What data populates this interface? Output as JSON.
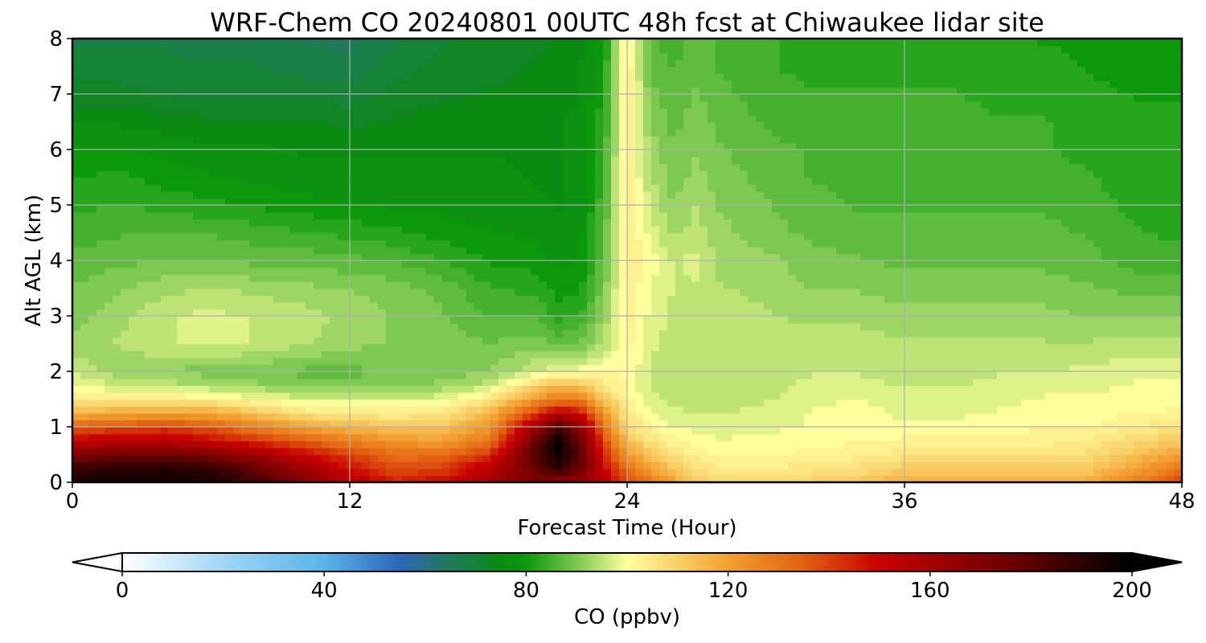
{
  "chart_data": {
    "type": "heatmap",
    "title": "WRF-Chem CO  20240801 00UTC 48h fcst at Chiwaukee lidar site",
    "xlabel": "Forecast Time (Hour)",
    "ylabel": "Alt AGL (km)",
    "xlim": [
      0,
      48
    ],
    "ylim": [
      0,
      8
    ],
    "xticks": [
      0,
      12,
      24,
      36,
      48
    ],
    "yticks": [
      0,
      1,
      2,
      3,
      4,
      5,
      6,
      7,
      8
    ],
    "grid": true,
    "colorbar": {
      "label": "CO  (ppbv)",
      "range": [
        0,
        200
      ],
      "ticks": [
        0,
        40,
        80,
        120,
        160,
        200
      ],
      "extend": "both",
      "colors": {
        "0": "#ffffff",
        "20": "#9fd6f5",
        "40": "#5ab4ea",
        "55": "#2e66b8",
        "65": "#1f7a5a",
        "75": "#0a8a10",
        "80": "#0b990b",
        "90": "#7cc850",
        "100": "#fffe9e",
        "120": "#f3a030",
        "135": "#e26010",
        "150": "#c80000",
        "175": "#700000",
        "200": "#000000"
      }
    },
    "x": [
      0,
      2,
      4,
      6,
      8,
      10,
      12,
      14,
      16,
      18,
      20,
      21,
      22,
      23,
      24,
      25,
      26,
      27,
      28,
      30,
      32,
      34,
      36,
      38,
      40,
      42,
      44,
      46,
      48
    ],
    "y": [
      0,
      0.25,
      0.5,
      0.75,
      1.0,
      1.25,
      1.5,
      1.75,
      2.0,
      2.5,
      3.0,
      3.5,
      4.0,
      4.5,
      5.0,
      5.5,
      6.0,
      6.5,
      7.0,
      7.5,
      8.0
    ],
    "z": [
      [
        195,
        196,
        196,
        194,
        185,
        170,
        155,
        145,
        150,
        160,
        170,
        165,
        165,
        155,
        140,
        130,
        120,
        112,
        108,
        108,
        110,
        112,
        118,
        118,
        115,
        115,
        118,
        128,
        140
      ],
      [
        188,
        192,
        193,
        190,
        178,
        162,
        148,
        138,
        140,
        155,
        175,
        190,
        175,
        150,
        132,
        120,
        112,
        106,
        104,
        104,
        105,
        107,
        110,
        110,
        110,
        110,
        112,
        120,
        130
      ],
      [
        170,
        175,
        176,
        172,
        162,
        150,
        140,
        132,
        132,
        142,
        180,
        198,
        180,
        145,
        122,
        112,
        106,
        103,
        101,
        101,
        102,
        103,
        105,
        105,
        105,
        105,
        107,
        113,
        120
      ],
      [
        152,
        155,
        155,
        150,
        142,
        135,
        128,
        122,
        120,
        130,
        175,
        200,
        175,
        138,
        114,
        106,
        102,
        100,
        99,
        100,
        100,
        101,
        102,
        102,
        102,
        103,
        104,
        108,
        112
      ],
      [
        135,
        138,
        140,
        136,
        128,
        120,
        115,
        112,
        112,
        122,
        160,
        185,
        165,
        130,
        108,
        102,
        99,
        98,
        97,
        98,
        99,
        100,
        99,
        100,
        100,
        101,
        101,
        104,
        106
      ],
      [
        115,
        118,
        120,
        118,
        112,
        106,
        104,
        104,
        105,
        115,
        140,
        155,
        148,
        122,
        104,
        99,
        97,
        96,
        96,
        97,
        99,
        100,
        98,
        98,
        99,
        100,
        100,
        101,
        102
      ],
      [
        105,
        104,
        104,
        103,
        100,
        97,
        97,
        97,
        98,
        105,
        122,
        130,
        128,
        112,
        102,
        97,
        95,
        95,
        95,
        96,
        98,
        99,
        97,
        97,
        98,
        99,
        99,
        100,
        100
      ],
      [
        100,
        96,
        95,
        94,
        92,
        90,
        90,
        91,
        92,
        95,
        108,
        115,
        112,
        104,
        101,
        96,
        94,
        94,
        94,
        95,
        97,
        97,
        96,
        96,
        97,
        98,
        98,
        99,
        99
      ],
      [
        96,
        92,
        91,
        90,
        89,
        88,
        88,
        89,
        90,
        91,
        96,
        99,
        100,
        101,
        101,
        96,
        94,
        94,
        94,
        95,
        96,
        96,
        95,
        95,
        96,
        96,
        97,
        98,
        98
      ],
      [
        92,
        94,
        96,
        97,
        96,
        94,
        92,
        91,
        90,
        89,
        90,
        88,
        89,
        94,
        102,
        97,
        95,
        95,
        95,
        95,
        95,
        95,
        94,
        94,
        94,
        94,
        94,
        95,
        95
      ],
      [
        90,
        93,
        96,
        97,
        96,
        95,
        93,
        91,
        89,
        86,
        86,
        83,
        84,
        92,
        103,
        98,
        96,
        96,
        95,
        94,
        93,
        93,
        92,
        92,
        92,
        92,
        91,
        91,
        91
      ],
      [
        89,
        91,
        93,
        94,
        93,
        92,
        91,
        90,
        88,
        84,
        83,
        80,
        81,
        90,
        103,
        99,
        96,
        96,
        94,
        93,
        91,
        91,
        90,
        90,
        90,
        90,
        89,
        88,
        88
      ],
      [
        87,
        88,
        89,
        89,
        88,
        88,
        87,
        86,
        84,
        81,
        80,
        78,
        79,
        88,
        104,
        100,
        96,
        97,
        93,
        92,
        90,
        89,
        88,
        88,
        88,
        88,
        87,
        85,
        85
      ],
      [
        85,
        86,
        86,
        86,
        85,
        84,
        83,
        82,
        80,
        79,
        78,
        77,
        78,
        87,
        104,
        98,
        93,
        95,
        92,
        90,
        88,
        87,
        87,
        87,
        87,
        87,
        86,
        84,
        83
      ],
      [
        83,
        84,
        83,
        82,
        81,
        80,
        79,
        78,
        78,
        77,
        77,
        76,
        77,
        86,
        104,
        96,
        91,
        94,
        91,
        89,
        87,
        86,
        86,
        86,
        86,
        86,
        85,
        83,
        82
      ],
      [
        81,
        82,
        80,
        79,
        78,
        77,
        77,
        77,
        77,
        77,
        76,
        76,
        77,
        85,
        104,
        94,
        90,
        92,
        90,
        88,
        86,
        86,
        85,
        86,
        86,
        85,
        84,
        82,
        82
      ],
      [
        79,
        79,
        78,
        77,
        77,
        76,
        76,
        76,
        76,
        76,
        76,
        76,
        77,
        84,
        104,
        93,
        89,
        91,
        89,
        87,
        86,
        86,
        85,
        85,
        85,
        84,
        83,
        82,
        82
      ],
      [
        76,
        76,
        75,
        74,
        74,
        74,
        73,
        74,
        75,
        75,
        75,
        76,
        77,
        83,
        104,
        91,
        88,
        90,
        88,
        86,
        85,
        85,
        85,
        85,
        84,
        84,
        83,
        82,
        82
      ],
      [
        72,
        72,
        71,
        70,
        70,
        70,
        70,
        72,
        73,
        74,
        74,
        75,
        76,
        82,
        104,
        90,
        87,
        89,
        87,
        85,
        84,
        84,
        84,
        84,
        83,
        83,
        82,
        81,
        81
      ],
      [
        70,
        70,
        70,
        69,
        69,
        68,
        67,
        70,
        72,
        73,
        74,
        75,
        76,
        81,
        104,
        88,
        86,
        88,
        86,
        84,
        83,
        83,
        83,
        83,
        82,
        82,
        81,
        80,
        80
      ],
      [
        68,
        68,
        68,
        67,
        67,
        66,
        65,
        68,
        71,
        72,
        73,
        74,
        75,
        80,
        104,
        87,
        85,
        88,
        86,
        84,
        83,
        83,
        83,
        82,
        82,
        81,
        81,
        80,
        80
      ]
    ]
  }
}
